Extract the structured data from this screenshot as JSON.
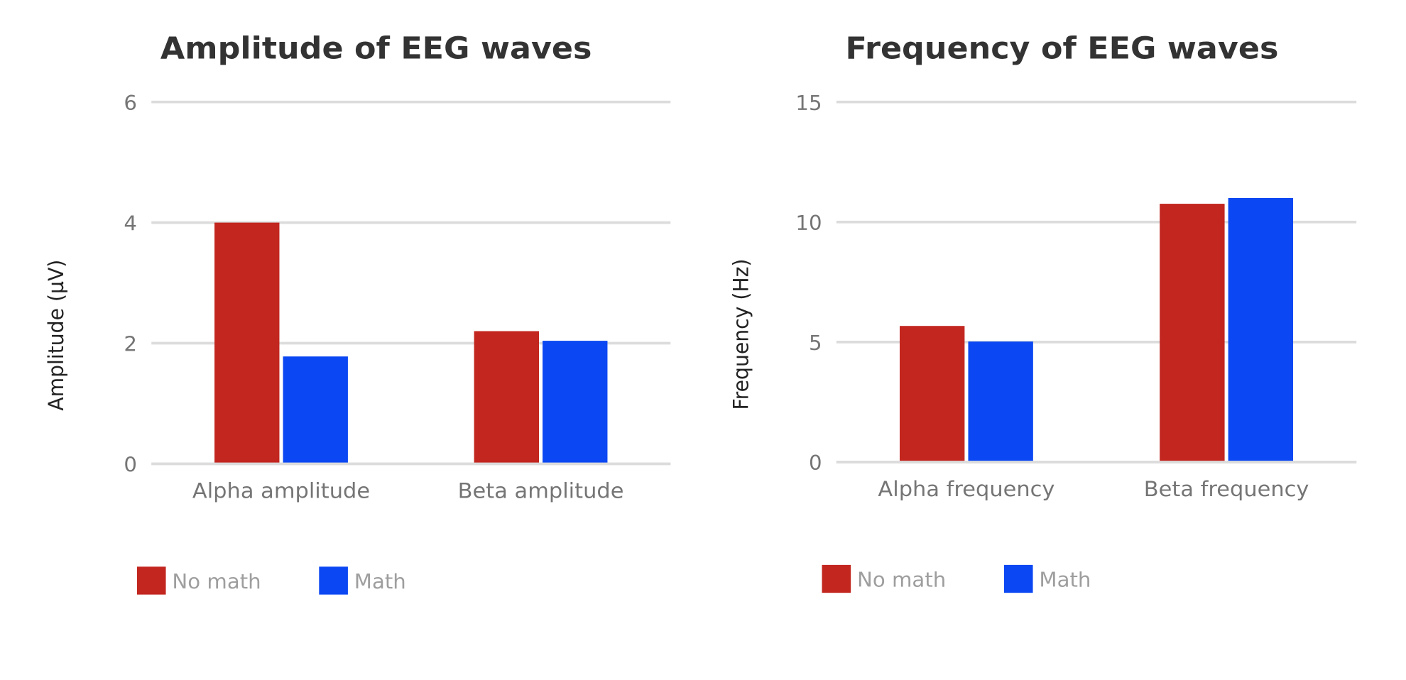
{
  "colors": {
    "no_math": "#c2261f",
    "math": "#0b47f2",
    "grid": "#dcdcdc"
  },
  "chart_data": [
    {
      "type": "bar",
      "title": "Amplitude of EEG waves",
      "xlabel": "",
      "ylabel": "Amplitude (µV)",
      "categories": [
        "Alpha amplitude",
        "Beta amplitude"
      ],
      "series": [
        {
          "name": "No math",
          "values": [
            4.0,
            2.2
          ]
        },
        {
          "name": "Math",
          "values": [
            1.78,
            2.04
          ]
        }
      ],
      "ylim": [
        0,
        6
      ],
      "yticks": [
        "0",
        "2",
        "4",
        "6"
      ],
      "ytick_values": [
        0,
        2,
        4,
        6
      ],
      "grid": true,
      "legend": "bottom-left"
    },
    {
      "type": "bar",
      "title": "Frequency of EEG waves",
      "xlabel": "",
      "ylabel": "Frequency (Hz)",
      "categories": [
        "Alpha frequency",
        "Beta frequency"
      ],
      "series": [
        {
          "name": "No math",
          "values": [
            5.67,
            10.76
          ]
        },
        {
          "name": "Math",
          "values": [
            5.02,
            11.0
          ]
        }
      ],
      "ylim": [
        0,
        15
      ],
      "yticks": [
        "0",
        "5",
        "10",
        "15"
      ],
      "ytick_values": [
        0,
        5,
        10,
        15
      ],
      "grid": true,
      "legend": "bottom-left"
    }
  ]
}
